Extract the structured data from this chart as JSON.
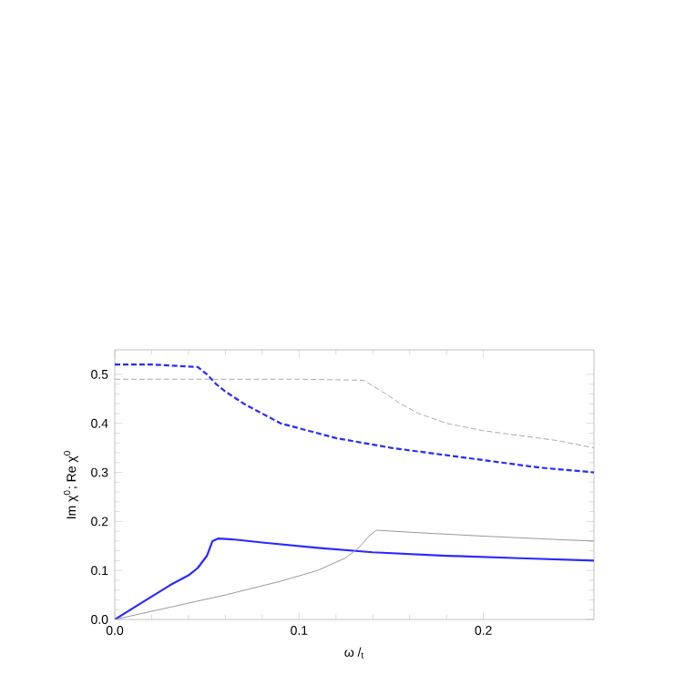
{
  "chart_data": {
    "type": "line",
    "xlabel": "ω /$_{t}$",
    "ylabel": "Im χ$^{0}$;  Re  χ$^{0}$",
    "xlim": [
      0,
      0.26
    ],
    "ylim": [
      0,
      0.55
    ],
    "xticks": [
      {
        "value": 0,
        "label": "0.0"
      },
      0.1,
      0.2
    ],
    "yticks": [
      {
        "value": 0,
        "label": "0.0"
      },
      0.1,
      0.2,
      0.3,
      0.4,
      0.5
    ],
    "grid": false,
    "marker": "none",
    "series": [
      {
        "color": "#2a2aff",
        "line_style": "dashed",
        "x": [
          0,
          0.02,
          0.045,
          0.05,
          0.055,
          0.06,
          0.07,
          0.08,
          0.09,
          0.1,
          0.12,
          0.15,
          0.19,
          0.23,
          0.26
        ],
        "values": [
          0.52,
          0.52,
          0.515,
          0.5,
          0.48,
          0.465,
          0.44,
          0.42,
          0.4,
          0.39,
          0.37,
          0.35,
          0.33,
          0.31,
          0.3
        ]
      },
      {
        "color": "#aaaaaa",
        "line_style": "dashed",
        "x": [
          0,
          0.05,
          0.1,
          0.135,
          0.145,
          0.155,
          0.165,
          0.18,
          0.2,
          0.22,
          0.24,
          0.26
        ],
        "values": [
          0.49,
          0.49,
          0.49,
          0.488,
          0.465,
          0.44,
          0.42,
          0.4,
          0.385,
          0.375,
          0.365,
          0.35
        ]
      },
      {
        "color": "#2a2aff",
        "line_style": "solid",
        "x": [
          0,
          0.015,
          0.03,
          0.04,
          0.045,
          0.05,
          0.053,
          0.056,
          0.065,
          0.08,
          0.11,
          0.14,
          0.18,
          0.22,
          0.26
        ],
        "values": [
          0,
          0.035,
          0.07,
          0.09,
          0.105,
          0.13,
          0.16,
          0.165,
          0.163,
          0.157,
          0.146,
          0.137,
          0.13,
          0.125,
          0.12
        ]
      },
      {
        "color": "#999999",
        "line_style": "solid",
        "x": [
          0,
          0.03,
          0.06,
          0.09,
          0.11,
          0.125,
          0.132,
          0.138,
          0.142,
          0.16,
          0.2,
          0.24,
          0.26
        ],
        "values": [
          0,
          0.025,
          0.05,
          0.078,
          0.1,
          0.125,
          0.145,
          0.17,
          0.182,
          0.178,
          0.17,
          0.163,
          0.16
        ]
      }
    ]
  }
}
